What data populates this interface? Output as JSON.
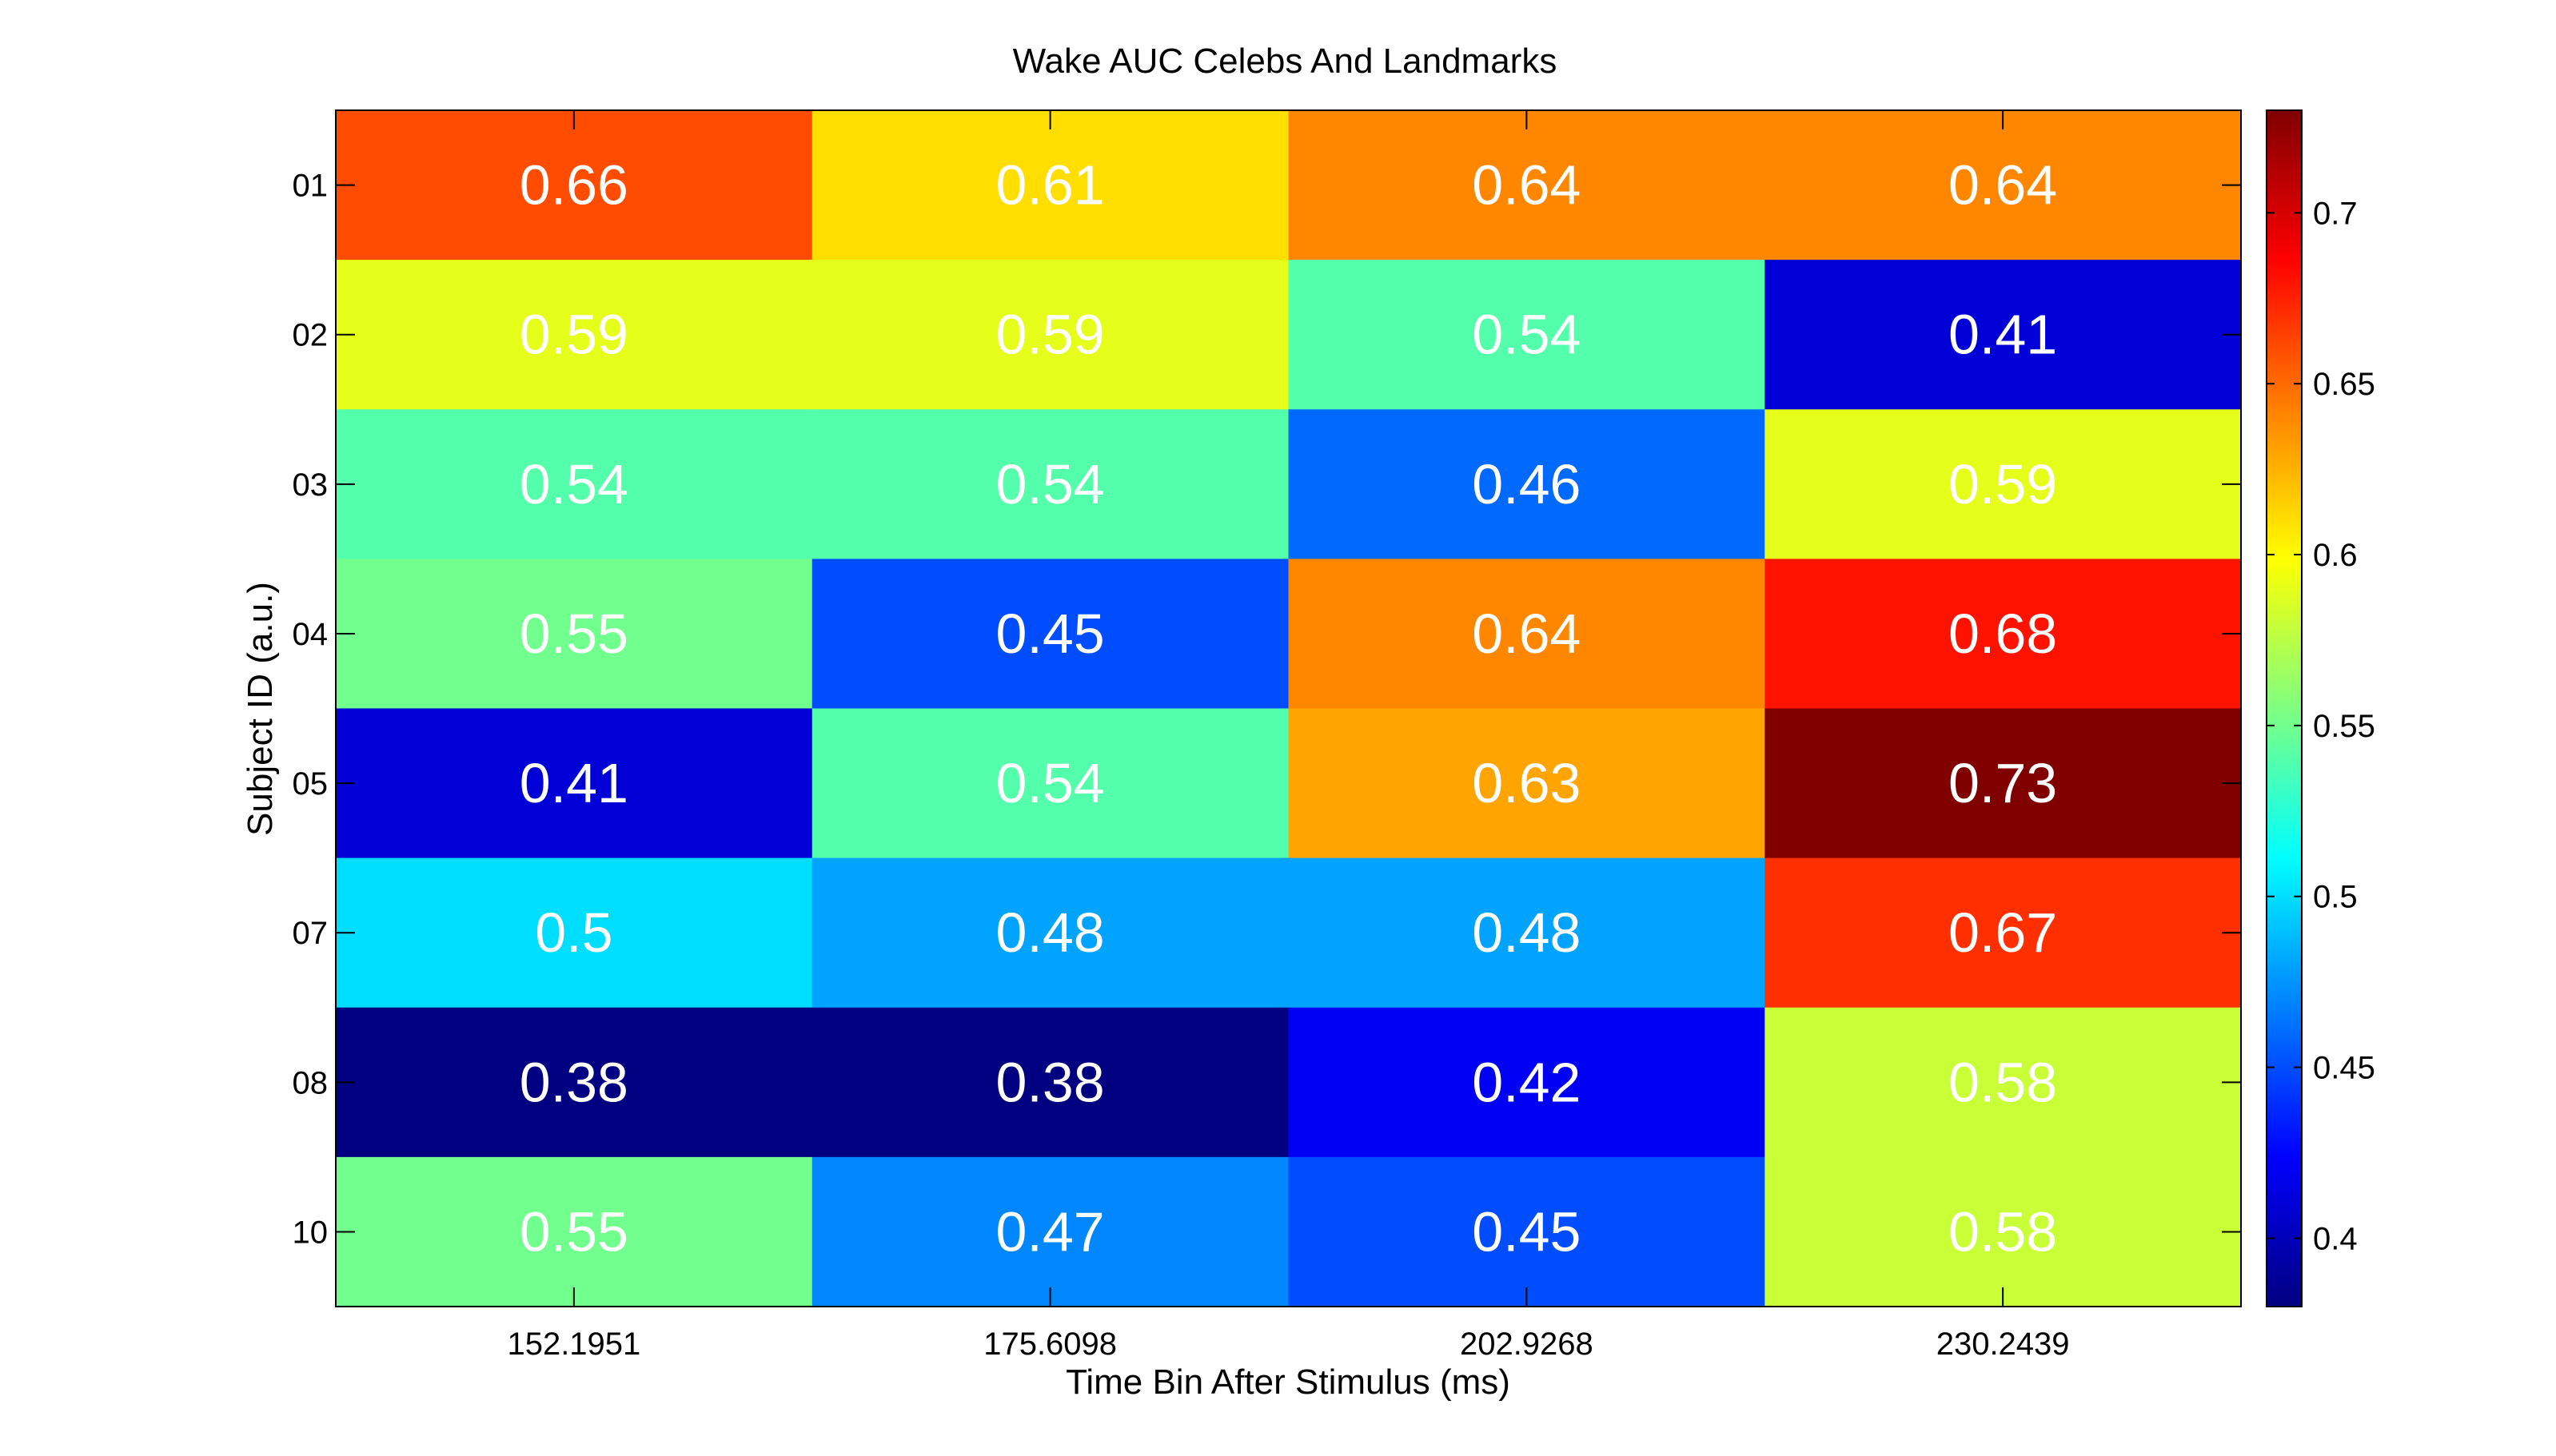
{
  "chart_data": {
    "type": "heatmap",
    "title": "Wake AUC Celebs And Landmarks",
    "xlabel": "Time Bin After Stimulus (ms)",
    "ylabel": "Subject ID (a.u.)",
    "x_categories": [
      "152.1951",
      "175.6098",
      "202.9268",
      "230.2439"
    ],
    "y_categories": [
      "01",
      "02",
      "03",
      "04",
      "05",
      "07",
      "08",
      "10"
    ],
    "values": [
      [
        0.66,
        0.61,
        0.64,
        0.64
      ],
      [
        0.59,
        0.59,
        0.54,
        0.41
      ],
      [
        0.54,
        0.54,
        0.46,
        0.59
      ],
      [
        0.55,
        0.45,
        0.64,
        0.68
      ],
      [
        0.41,
        0.54,
        0.63,
        0.73
      ],
      [
        0.5,
        0.48,
        0.48,
        0.67
      ],
      [
        0.38,
        0.38,
        0.42,
        0.58
      ],
      [
        0.55,
        0.47,
        0.45,
        0.58
      ]
    ],
    "cell_labels": [
      [
        "0.66",
        "0.61",
        "0.64",
        "0.64"
      ],
      [
        "0.59",
        "0.59",
        "0.54",
        "0.41"
      ],
      [
        "0.54",
        "0.54",
        "0.46",
        "0.59"
      ],
      [
        "0.55",
        "0.45",
        "0.64",
        "0.68"
      ],
      [
        "0.41",
        "0.54",
        "0.63",
        "0.73"
      ],
      [
        "0.5",
        "0.48",
        "0.48",
        "0.67"
      ],
      [
        "0.38",
        "0.38",
        "0.42",
        "0.58"
      ],
      [
        "0.55",
        "0.47",
        "0.45",
        "0.58"
      ]
    ],
    "colormap": "jet",
    "colorbar": {
      "range": [
        0.38,
        0.73
      ],
      "ticks": [
        0.4,
        0.45,
        0.5,
        0.55,
        0.6,
        0.65,
        0.7
      ],
      "tick_labels": [
        "0.4",
        "0.45",
        "0.5",
        "0.55",
        "0.6",
        "0.65",
        "0.7"
      ]
    },
    "grid": false
  }
}
